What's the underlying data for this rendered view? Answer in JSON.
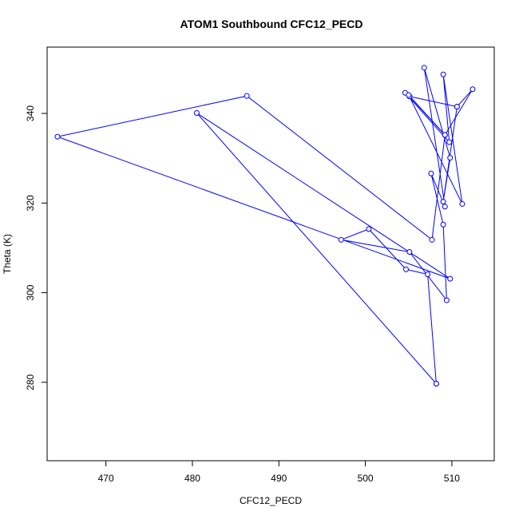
{
  "chart_data": {
    "type": "line",
    "title": "ATOM1 Southbound CFC12_PECD",
    "xlabel": "CFC12_PECD",
    "ylabel": "Theta (K)",
    "xlim": [
      463.2,
      514.9
    ],
    "ylim": [
      262.5,
      354.8
    ],
    "xticks": [
      470,
      480,
      490,
      500,
      510
    ],
    "yticks": [
      280,
      300,
      320,
      340
    ],
    "grid": false,
    "colors": {
      "series": "#0000ff",
      "background": "#ffffff"
    },
    "series": [
      {
        "marker": "open-circle",
        "points": [
          {
            "x": 508.2,
            "y": 279.7
          },
          {
            "x": 480.5,
            "y": 340.1
          },
          {
            "x": 509.8,
            "y": 303.1
          },
          {
            "x": 464.4,
            "y": 334.8
          },
          {
            "x": 486.3,
            "y": 343.9
          },
          {
            "x": 507.7,
            "y": 311.8
          },
          {
            "x": 509.2,
            "y": 335.2
          },
          {
            "x": 505.1,
            "y": 343.8
          },
          {
            "x": 510.6,
            "y": 341.5
          },
          {
            "x": 509.0,
            "y": 320.3
          },
          {
            "x": 509.8,
            "y": 330.1
          },
          {
            "x": 506.8,
            "y": 350.2
          },
          {
            "x": 509.2,
            "y": 319.2
          },
          {
            "x": 507.6,
            "y": 326.6
          },
          {
            "x": 509.0,
            "y": 315.2
          },
          {
            "x": 509.4,
            "y": 298.3
          },
          {
            "x": 505.1,
            "y": 309.1
          },
          {
            "x": 497.2,
            "y": 311.8
          },
          {
            "x": 500.4,
            "y": 314.2
          },
          {
            "x": 504.7,
            "y": 305.2
          },
          {
            "x": 507.2,
            "y": 304.1
          },
          {
            "x": 508.2,
            "y": 279.7
          }
        ]
      },
      {
        "marker": "open-circle",
        "points": [
          {
            "x": 504.6,
            "y": 344.6
          },
          {
            "x": 509.7,
            "y": 333.6
          },
          {
            "x": 509.0,
            "y": 348.7
          },
          {
            "x": 511.2,
            "y": 319.8
          },
          {
            "x": 505.0,
            "y": 344.1
          },
          {
            "x": 509.2,
            "y": 335.2
          },
          {
            "x": 512.4,
            "y": 345.4
          },
          {
            "x": 510.6,
            "y": 341.5
          }
        ]
      }
    ]
  }
}
